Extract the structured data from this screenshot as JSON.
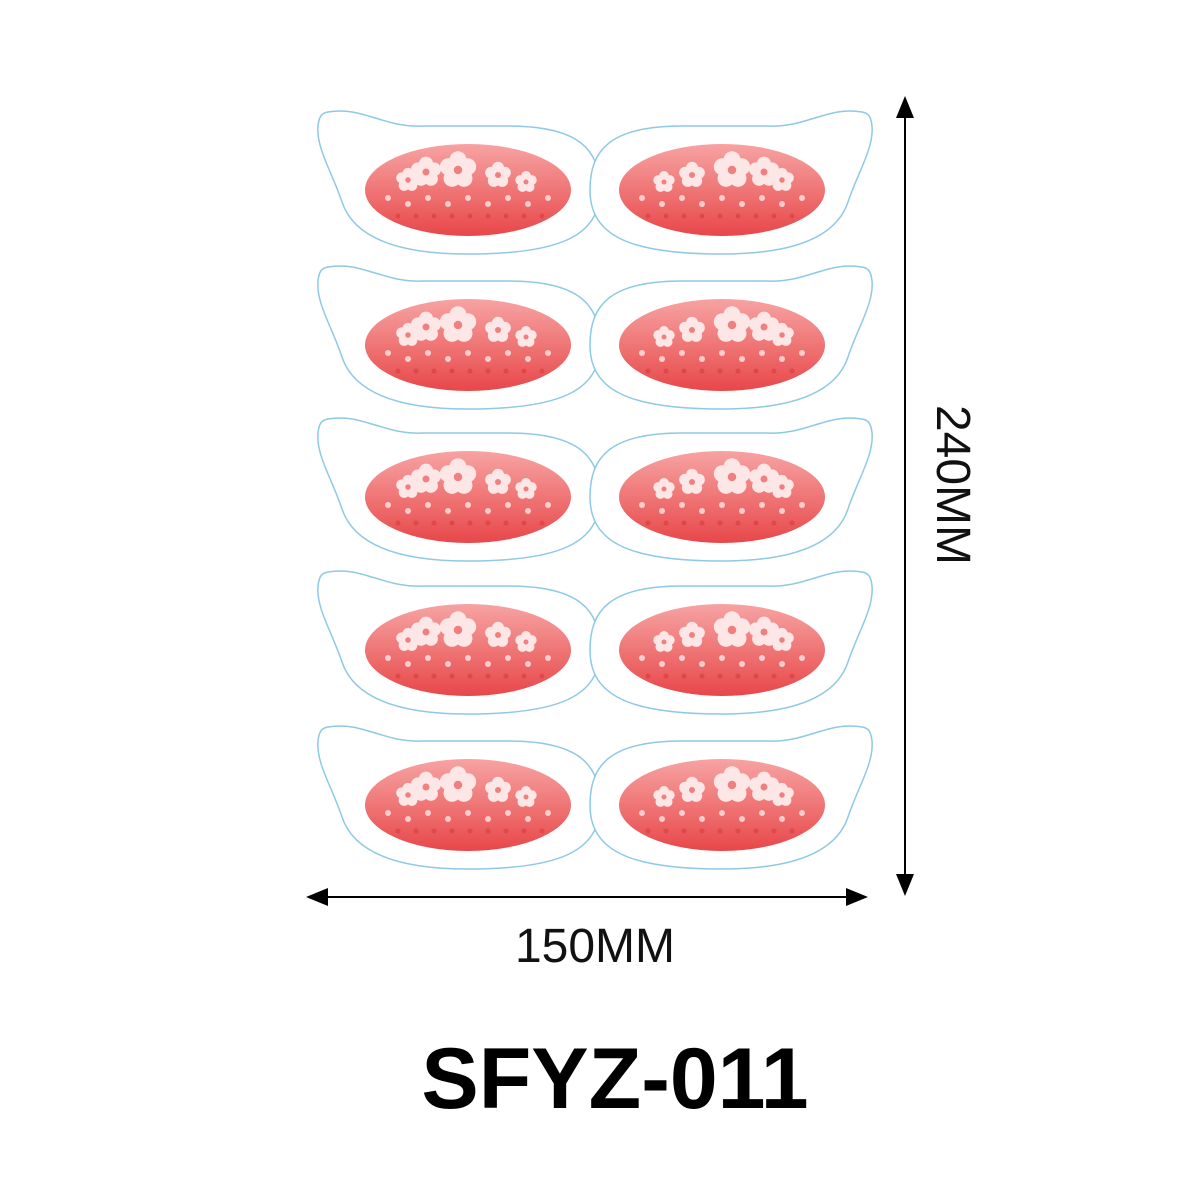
{
  "dimensions": {
    "height": "240MM",
    "width": "150MM"
  },
  "product_code": "SFYZ-011"
}
